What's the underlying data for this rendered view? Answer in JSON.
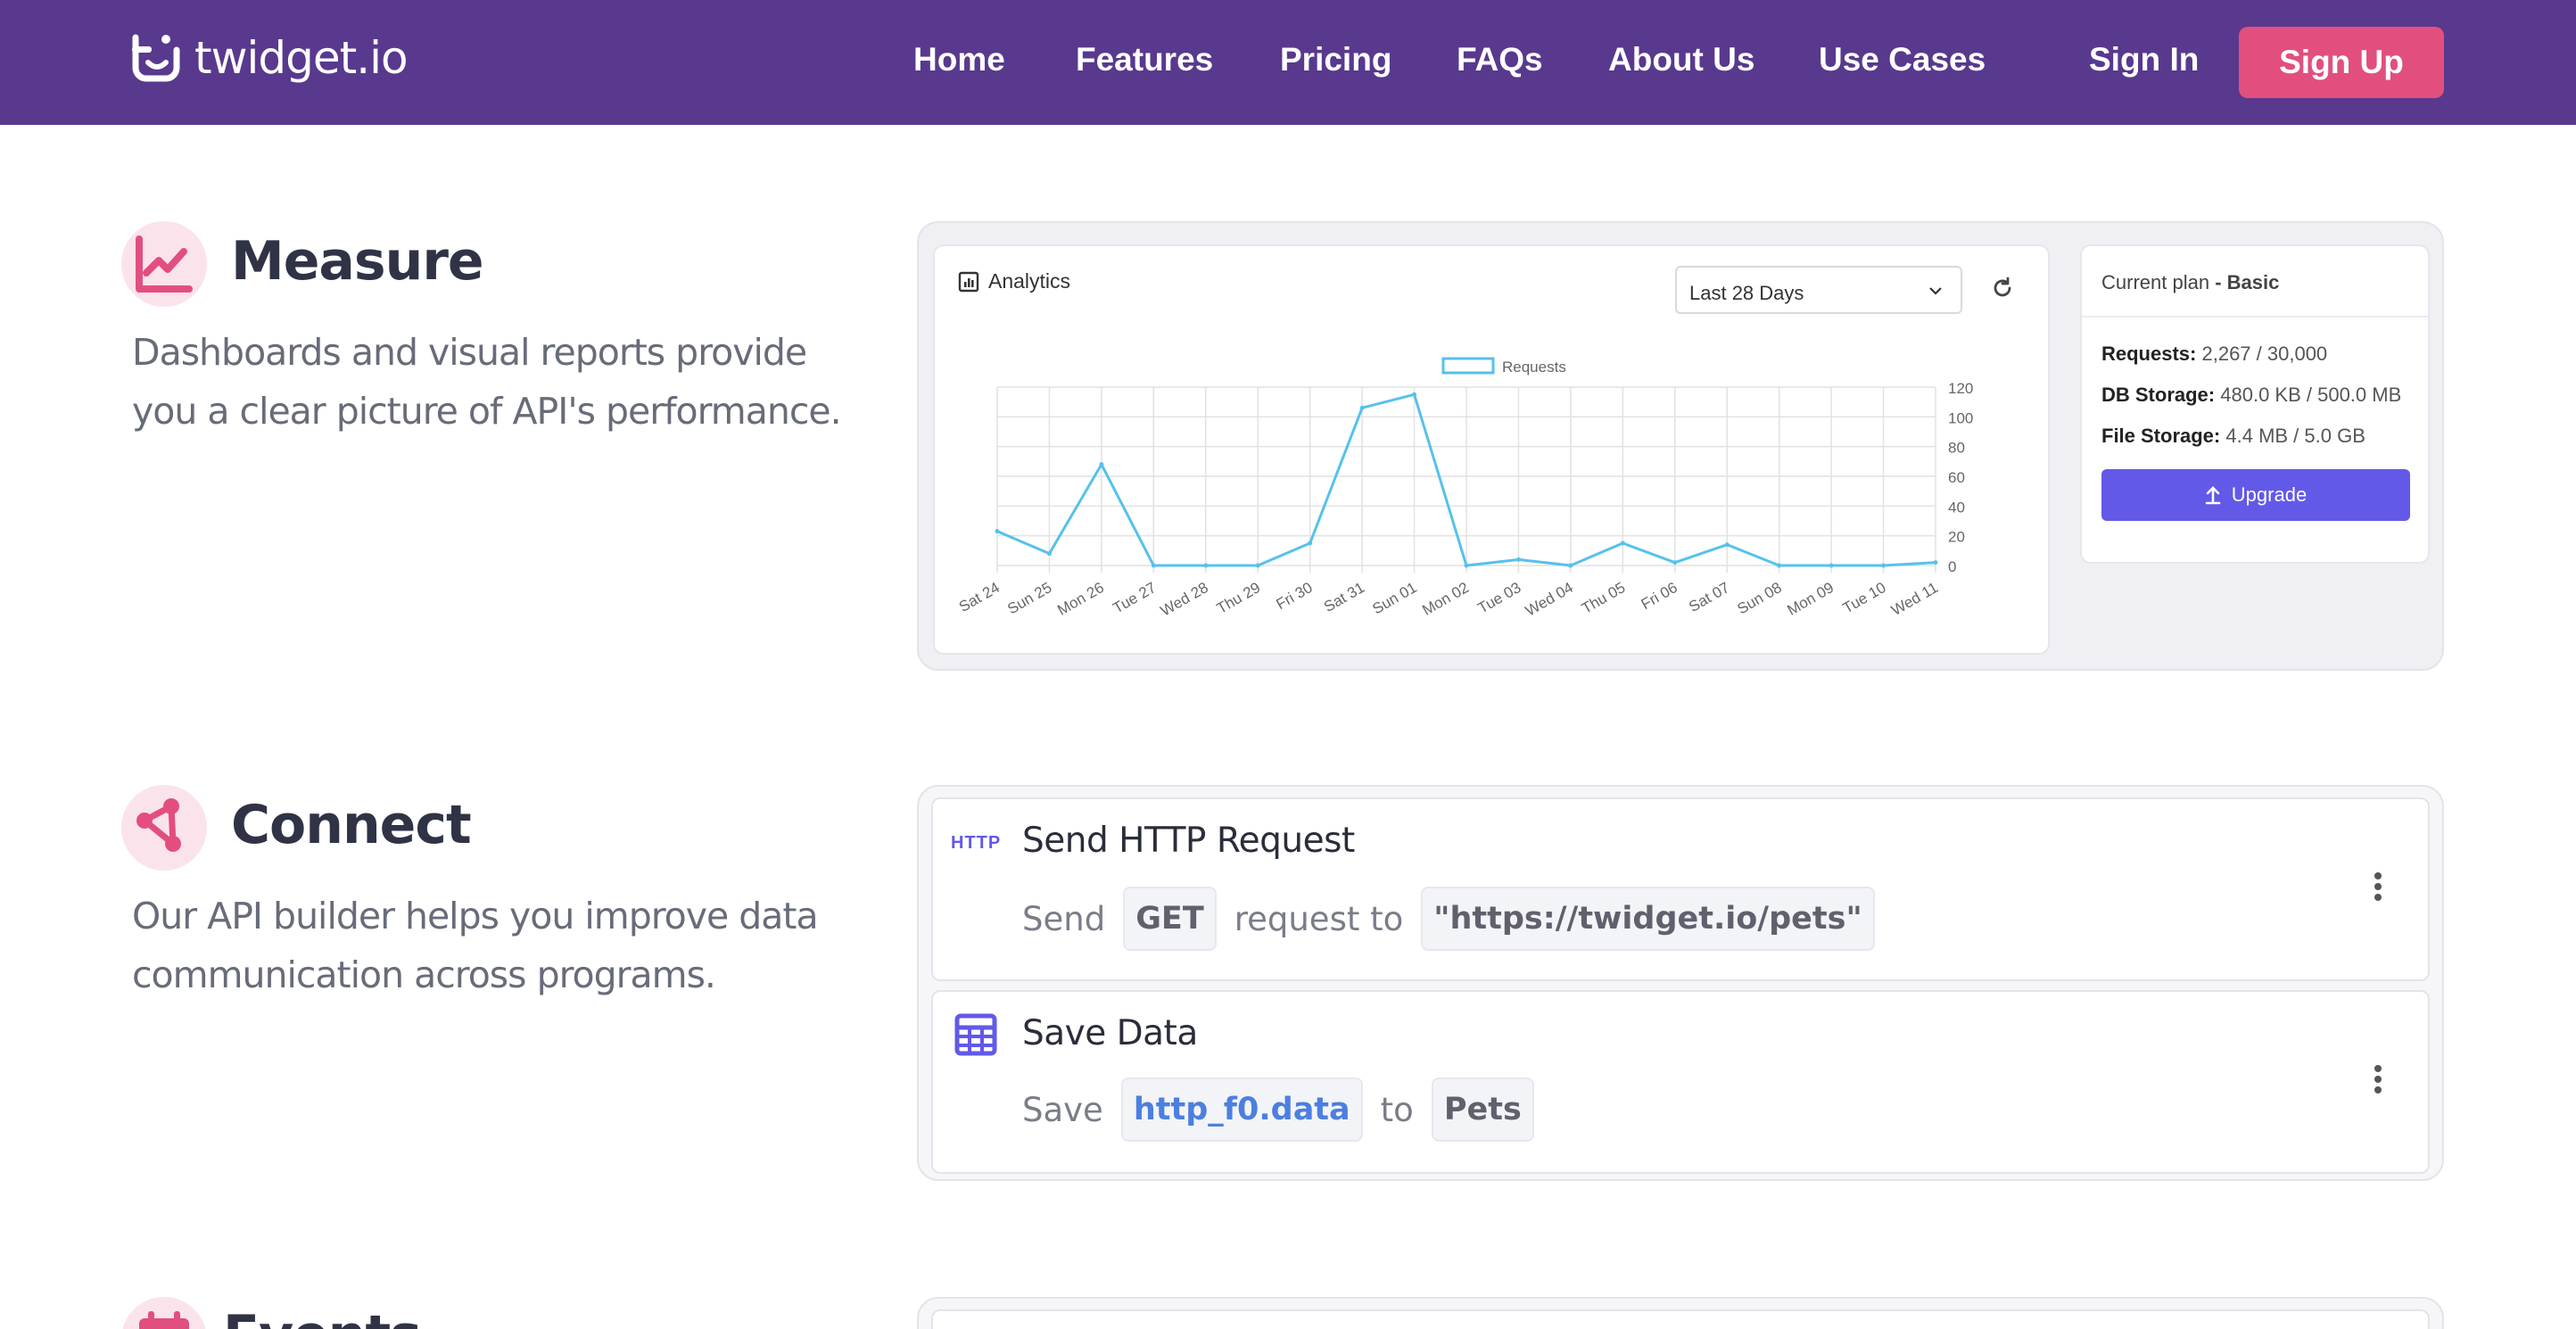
{
  "nav": {
    "brand": "twidget.io",
    "links": [
      "Home",
      "Features",
      "Pricing",
      "FAQs",
      "About Us",
      "Use Cases"
    ],
    "sign_in": "Sign In",
    "sign_up": "Sign Up"
  },
  "measure": {
    "title": "Measure",
    "description": "Dashboards and visual reports provide you a clear picture of API's performance.",
    "analytics_title": "Analytics",
    "range_selected": "Last 28 Days",
    "plan": {
      "label": "Current plan",
      "name": "- Basic",
      "requests_label": "Requests:",
      "requests_value": "2,267 / 30,000",
      "db_label": "DB Storage:",
      "db_value": "480.0 KB / 500.0 MB",
      "file_label": "File Storage:",
      "file_value": "4.4 MB / 5.0 GB",
      "upgrade": "Upgrade"
    }
  },
  "chart_data": {
    "type": "line",
    "categories": [
      "Sat 24",
      "Sun 25",
      "Mon 26",
      "Tue 27",
      "Wed 28",
      "Thu 29",
      "Fri 30",
      "Sat 31",
      "Sun 01",
      "Mon 02",
      "Tue 03",
      "Wed 04",
      "Thu 05",
      "Fri 06",
      "Sat 07",
      "Sun 08",
      "Mon 09",
      "Tue 10",
      "Wed 11"
    ],
    "series": [
      {
        "name": "Requests",
        "values": [
          23,
          8,
          68,
          0,
          0,
          0,
          15,
          106,
          115,
          0,
          4,
          0,
          15,
          2,
          14,
          0,
          0,
          0,
          2
        ]
      }
    ],
    "ylim": [
      0,
      120
    ],
    "yticks": [
      0,
      20,
      40,
      60,
      80,
      100,
      120
    ],
    "legend": "top-center",
    "grid": true,
    "color": "#56c1ec"
  },
  "connect": {
    "title": "Connect",
    "description": "Our API builder helps you improve data communication across programs.",
    "http": {
      "badge": "HTTP",
      "title": "Send HTTP Request",
      "word1": "Send",
      "method": "GET",
      "word2": "request to",
      "url": "\"https://twidget.io/pets\""
    },
    "save": {
      "title": "Save Data",
      "word1": "Save",
      "source": "http_f0.data",
      "word2": "to",
      "target": "Pets"
    }
  },
  "events": {
    "title": "Events"
  },
  "colors": {
    "nav": "#58398e",
    "accent": "#e24f7e",
    "primary": "#6259e8"
  }
}
